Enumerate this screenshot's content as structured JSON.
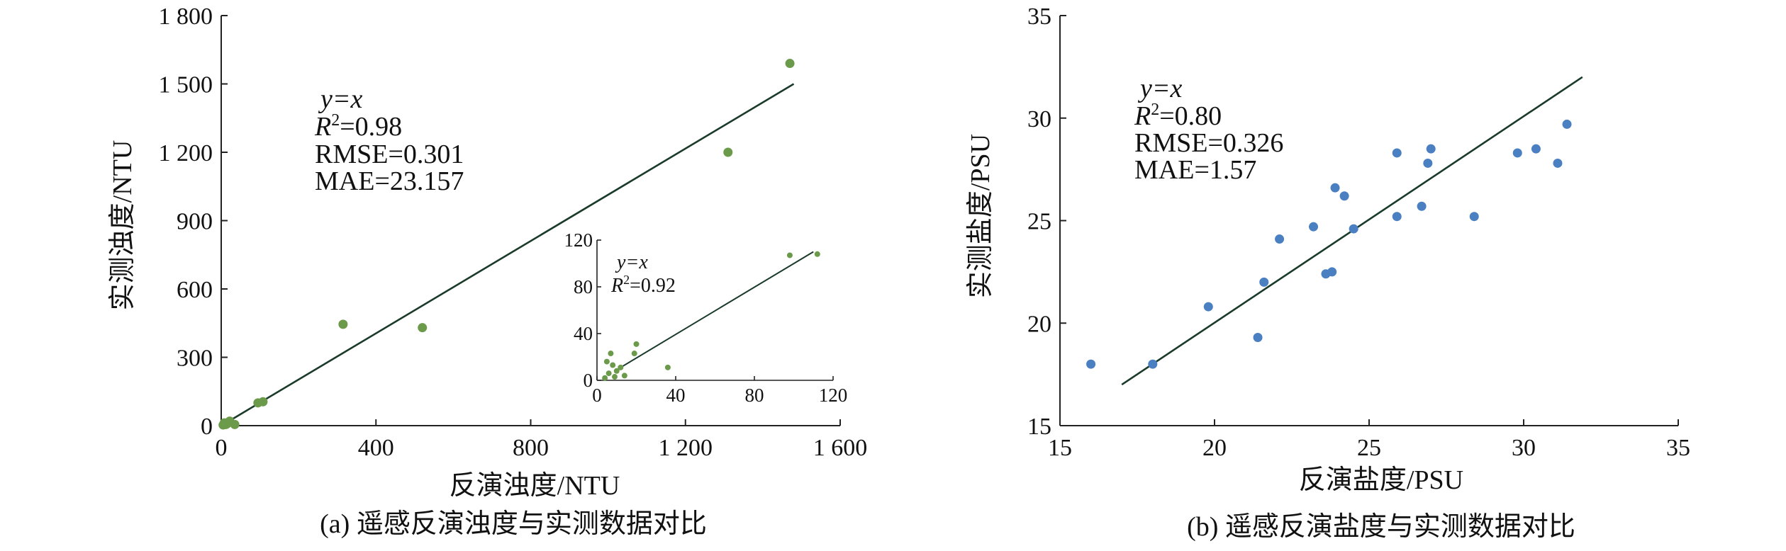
{
  "chart_data": [
    {
      "id": "a",
      "type": "scatter",
      "caption": "(a) 遥感反演浊度与实测数据对比",
      "xlabel": "反演浊度/NTU",
      "ylabel": "实测浊度/NTU",
      "xlim": [
        0,
        1600
      ],
      "ylim": [
        0,
        1800
      ],
      "xticks": [
        0,
        400,
        800,
        1200,
        1600
      ],
      "xtick_labels": [
        "0",
        "400",
        "800",
        "1 200",
        "1 600"
      ],
      "yticks": [
        0,
        300,
        600,
        900,
        1200,
        1500,
        1800
      ],
      "ytick_labels": [
        "0",
        "300",
        "600",
        "900",
        "1 200",
        "1 500",
        "1 800"
      ],
      "point_color": "#6a9a4a",
      "line_color": "#1a3a2a",
      "fit_line": {
        "label": "y=x",
        "x": [
          30,
          1480
        ],
        "y": [
          30,
          1500
        ]
      },
      "stats": {
        "r2_prefix": "R",
        "r2_sup": "2",
        "r2_value": "=0.98",
        "rmse": "RMSE=0.301",
        "mae": "MAE=23.157"
      },
      "points": [
        {
          "x": 1470,
          "y": 1590
        },
        {
          "x": 1310,
          "y": 1200
        },
        {
          "x": 520,
          "y": 430
        },
        {
          "x": 315,
          "y": 445
        },
        {
          "x": 108,
          "y": 105
        },
        {
          "x": 95,
          "y": 100
        },
        {
          "x": 8,
          "y": 12
        },
        {
          "x": 15,
          "y": 8
        },
        {
          "x": 22,
          "y": 20
        },
        {
          "x": 12,
          "y": 5
        },
        {
          "x": 5,
          "y": 3
        },
        {
          "x": 35,
          "y": 5
        }
      ],
      "inset": {
        "xlim": [
          0,
          120
        ],
        "ylim": [
          0,
          120
        ],
        "xticks": [
          0,
          40,
          80,
          120
        ],
        "xtick_labels": [
          "0",
          "40",
          "80",
          "120"
        ],
        "yticks": [
          0,
          40,
          80,
          120
        ],
        "ytick_labels": [
          "0",
          "40",
          "80",
          "120"
        ],
        "fit_line": {
          "label": "y=x",
          "x": [
            13,
            110
          ],
          "y": [
            12,
            110
          ]
        },
        "stats": {
          "r2_prefix": "R",
          "r2_sup": "2",
          "r2_value": "=0.92"
        },
        "points": [
          {
            "x": 98,
            "y": 107
          },
          {
            "x": 112,
            "y": 108
          },
          {
            "x": 20,
            "y": 31
          },
          {
            "x": 19,
            "y": 23
          },
          {
            "x": 7,
            "y": 23
          },
          {
            "x": 5,
            "y": 16
          },
          {
            "x": 12,
            "y": 11
          },
          {
            "x": 8,
            "y": 13
          },
          {
            "x": 10,
            "y": 8
          },
          {
            "x": 36,
            "y": 11
          },
          {
            "x": 4,
            "y": 2
          },
          {
            "x": 14,
            "y": 4
          },
          {
            "x": 6,
            "y": 6
          },
          {
            "x": 9,
            "y": 3
          }
        ]
      }
    },
    {
      "id": "b",
      "type": "scatter",
      "caption": "(b) 遥感反演盐度与实测数据对比",
      "xlabel": "反演盐度/PSU",
      "ylabel": "实测盐度/PSU",
      "xlim": [
        15,
        35
      ],
      "ylim": [
        15,
        35
      ],
      "xticks": [
        15,
        20,
        25,
        30,
        35
      ],
      "xtick_labels": [
        "15",
        "20",
        "25",
        "30",
        "35"
      ],
      "yticks": [
        15,
        20,
        25,
        30,
        35
      ],
      "ytick_labels": [
        "15",
        "20",
        "25",
        "30",
        "35"
      ],
      "point_color": "#4a7fc1",
      "line_color": "#1a3a2a",
      "fit_line": {
        "label": "y=x",
        "x": [
          17,
          31.9
        ],
        "y": [
          17,
          32
        ]
      },
      "stats": {
        "r2_prefix": "R",
        "r2_sup": "2",
        "r2_value": "=0.80",
        "rmse": "RMSE=0.326",
        "mae": "MAE=1.57"
      },
      "points": [
        {
          "x": 16.0,
          "y": 18.0
        },
        {
          "x": 18.0,
          "y": 18.0
        },
        {
          "x": 19.8,
          "y": 20.8
        },
        {
          "x": 21.4,
          "y": 19.3
        },
        {
          "x": 21.6,
          "y": 22.0
        },
        {
          "x": 22.1,
          "y": 24.1
        },
        {
          "x": 23.2,
          "y": 24.7
        },
        {
          "x": 23.6,
          "y": 22.4
        },
        {
          "x": 23.8,
          "y": 22.5
        },
        {
          "x": 23.9,
          "y": 26.6
        },
        {
          "x": 24.2,
          "y": 26.2
        },
        {
          "x": 24.5,
          "y": 24.6
        },
        {
          "x": 25.9,
          "y": 28.3
        },
        {
          "x": 25.9,
          "y": 25.2
        },
        {
          "x": 26.7,
          "y": 25.7
        },
        {
          "x": 26.9,
          "y": 27.8
        },
        {
          "x": 27.0,
          "y": 28.5
        },
        {
          "x": 28.4,
          "y": 25.2
        },
        {
          "x": 29.8,
          "y": 28.3
        },
        {
          "x": 30.4,
          "y": 28.5
        },
        {
          "x": 31.1,
          "y": 27.8
        },
        {
          "x": 31.4,
          "y": 29.7
        }
      ]
    }
  ]
}
